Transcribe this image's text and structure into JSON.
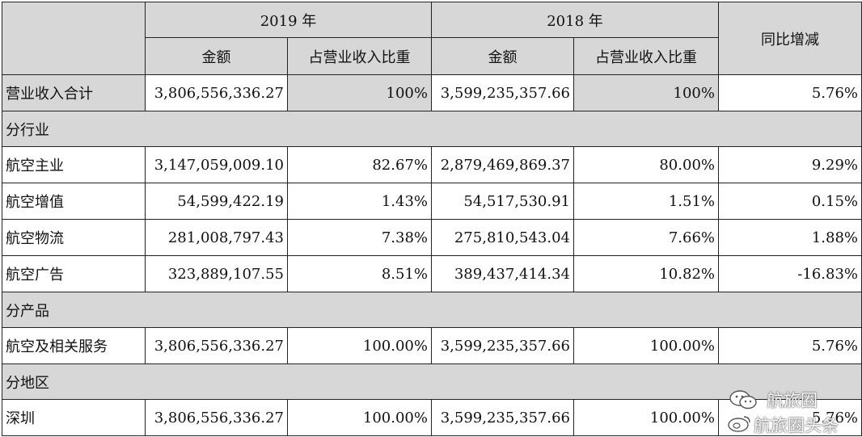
{
  "table": {
    "header": {
      "year_2019": "2019 年",
      "year_2018": "2018 年",
      "yoy": "同比增减",
      "amount": "金额",
      "share": "占营业收入比重"
    },
    "total": {
      "label": "营业收入合计",
      "amount_2019": "3,806,556,336.27",
      "share_2019": "100%",
      "amount_2018": "3,599,235,357.66",
      "share_2018": "100%",
      "yoy": "5.76%"
    },
    "sections": {
      "industry": "分行业",
      "product": "分产品",
      "region": "分地区"
    },
    "industry_rows": [
      {
        "label": "航空主业",
        "amount_2019": "3,147,059,009.10",
        "share_2019": "82.67%",
        "amount_2018": "2,879,469,869.37",
        "share_2018": "80.00%",
        "yoy": "9.29%"
      },
      {
        "label": "航空增值",
        "amount_2019": "54,599,422.19",
        "share_2019": "1.43%",
        "amount_2018": "54,517,530.91",
        "share_2018": "1.51%",
        "yoy": "0.15%"
      },
      {
        "label": "航空物流",
        "amount_2019": "281,008,797.43",
        "share_2019": "7.38%",
        "amount_2018": "275,810,543.04",
        "share_2018": "7.66%",
        "yoy": "1.88%"
      },
      {
        "label": "航空广告",
        "amount_2019": "323,889,107.55",
        "share_2019": "8.51%",
        "amount_2018": "389,437,414.34",
        "share_2018": "10.82%",
        "yoy": "-16.83%"
      }
    ],
    "product_rows": [
      {
        "label": "航空及相关服务",
        "amount_2019": "3,806,556,336.27",
        "share_2019": "100.00%",
        "amount_2018": "3,599,235,357.66",
        "share_2018": "100.00%",
        "yoy": "5.76%"
      }
    ],
    "region_rows": [
      {
        "label": "深圳",
        "amount_2019": "3,806,556,336.27",
        "share_2019": "100.00%",
        "amount_2018": "3,599,235,357.66",
        "share_2018": "100.00%",
        "yoy": "5.76%"
      }
    ]
  },
  "watermark": {
    "line1": "航旅圈",
    "line2": "航旅圈头条"
  }
}
